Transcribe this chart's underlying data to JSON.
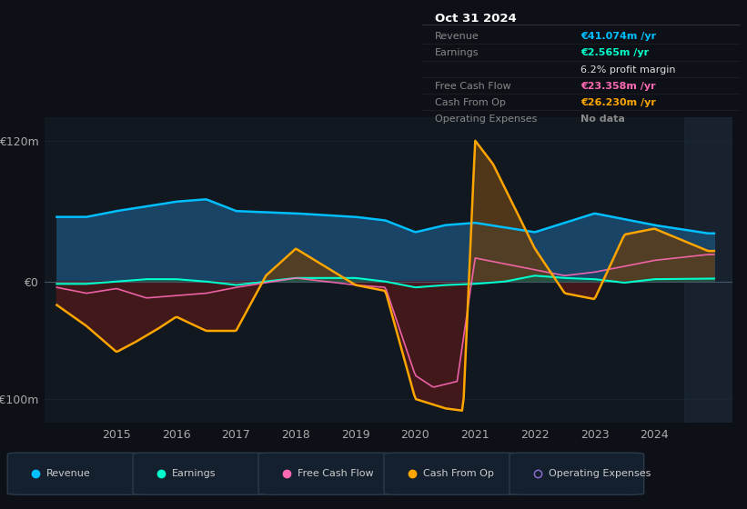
{
  "bg_color": "#0d1117",
  "plot_bg": "#111820",
  "revenue_color": "#00bfff",
  "earnings_color": "#00ffcc",
  "fcf_color": "#ff69b4",
  "cashop_color": "#ffa500",
  "opex_color": "#9370db",
  "grid_color": "#2a3a4a",
  "zero_line_color": "#445566",
  "ylim": [
    -120,
    140
  ],
  "ytick_labels": [
    "-€100m",
    "€0",
    "€120m"
  ],
  "ytick_values": [
    -100,
    0,
    120
  ],
  "xtick_labels": [
    "2015",
    "2016",
    "2017",
    "2018",
    "2019",
    "2020",
    "2021",
    "2022",
    "2023",
    "2024"
  ],
  "xtick_values": [
    2015,
    2016,
    2017,
    2018,
    2019,
    2020,
    2021,
    2022,
    2023,
    2024
  ],
  "legend_items": [
    {
      "label": "Revenue",
      "color": "#00bfff",
      "filled": true
    },
    {
      "label": "Earnings",
      "color": "#00ffcc",
      "filled": true
    },
    {
      "label": "Free Cash Flow",
      "color": "#ff69b4",
      "filled": true
    },
    {
      "label": "Cash From Op",
      "color": "#ffa500",
      "filled": true
    },
    {
      "label": "Operating Expenses",
      "color": "#9370db",
      "filled": false
    }
  ],
  "tooltip": {
    "title": "Oct 31 2024",
    "rows": [
      {
        "label": "Revenue",
        "value": "€41.074m /yr",
        "value_color": "#00bfff"
      },
      {
        "label": "Earnings",
        "value": "€2.565m /yr",
        "value_color": "#00ffcc"
      },
      {
        "label": "",
        "value": "6.2% profit margin",
        "value_color": "#dddddd"
      },
      {
        "label": "Free Cash Flow",
        "value": "€23.358m /yr",
        "value_color": "#ff69b4"
      },
      {
        "label": "Cash From Op",
        "value": "€26.230m /yr",
        "value_color": "#ffa500"
      },
      {
        "label": "Operating Expenses",
        "value": "No data",
        "value_color": "#888888"
      }
    ]
  }
}
